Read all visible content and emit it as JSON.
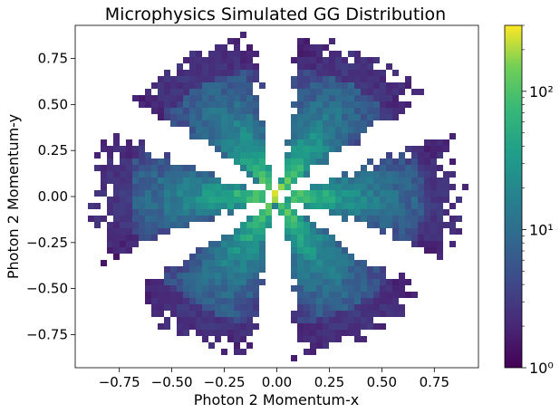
{
  "chart_data": {
    "type": "heatmap",
    "title": "Microphysics Simulated GG Distribution",
    "xlabel": "Photon 2 Momentum-x",
    "ylabel": "Photon 2 Momentum-y",
    "xlim": [
      -0.96,
      0.96
    ],
    "ylim": [
      -0.93,
      0.93
    ],
    "x_ticks": [
      -0.75,
      -0.5,
      -0.25,
      0.0,
      0.25,
      0.5,
      0.75
    ],
    "x_tick_labels": [
      "−0.75",
      "−0.50",
      "−0.25",
      "0.00",
      "0.25",
      "0.50",
      "0.75"
    ],
    "y_ticks": [
      0.75,
      0.5,
      0.25,
      0.0,
      -0.25,
      -0.5,
      -0.75
    ],
    "y_tick_labels": [
      "0.75",
      "0.50",
      "0.25",
      "0.00",
      "−0.25",
      "−0.50",
      "−0.75"
    ],
    "colorscale": "viridis",
    "color_scale_type": "log",
    "color_range": [
      1,
      300
    ],
    "colorbar_ticks": [
      1,
      10,
      100
    ],
    "colorbar_tick_labels": [
      "10⁰",
      "10¹",
      "10²"
    ],
    "description_values": {
      "lobes": 6,
      "lobe_center_angles_deg": [
        0,
        60,
        120,
        180,
        240,
        300
      ],
      "lobe_half_width_deg": 18,
      "max_radius": 0.9,
      "peak_density_at_center": 280
    },
    "grid": false
  }
}
